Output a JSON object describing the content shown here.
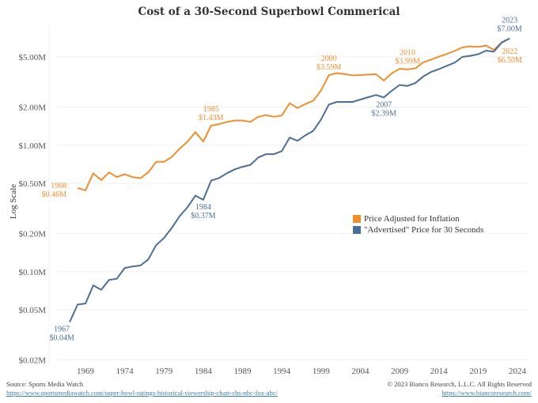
{
  "chart_data": {
    "type": "line",
    "title": "Cost of a 30-Second Superbowl Commerical",
    "xlabel": "",
    "ylabel": "Log Scale",
    "yscale": "log",
    "ylim": [
      0.02,
      7.5
    ],
    "xlim": [
      1965,
      2025
    ],
    "y_ticks": [
      {
        "value": 5.0,
        "label": "$5.00M"
      },
      {
        "value": 2.0,
        "label": "$2.00M"
      },
      {
        "value": 1.0,
        "label": "$1.00M"
      },
      {
        "value": 0.5,
        "label": "$0.50M"
      },
      {
        "value": 0.2,
        "label": "$0.20M"
      },
      {
        "value": 0.1,
        "label": "$0.10M"
      },
      {
        "value": 0.05,
        "label": "$0.05M"
      },
      {
        "value": 0.02,
        "label": "$0.02M"
      }
    ],
    "x_ticks": [
      "1969",
      "1974",
      "1979",
      "1984",
      "1989",
      "1994",
      "1999",
      "2004",
      "2009",
      "2014",
      "2019",
      "2024"
    ],
    "grid": true,
    "legend_position": "center-right",
    "series": [
      {
        "name": "Price Adjusted for Inflation",
        "color": "#ee8f2e",
        "x": [
          1968,
          1969,
          1970,
          1971,
          1972,
          1973,
          1974,
          1975,
          1976,
          1977,
          1978,
          1979,
          1980,
          1981,
          1982,
          1983,
          1984,
          1985,
          1986,
          1987,
          1988,
          1989,
          1990,
          1991,
          1992,
          1993,
          1994,
          1995,
          1996,
          1997,
          1998,
          1999,
          2000,
          2001,
          2002,
          2003,
          2004,
          2005,
          2006,
          2007,
          2008,
          2009,
          2010,
          2011,
          2012,
          2013,
          2014,
          2015,
          2016,
          2017,
          2018,
          2019,
          2020,
          2021,
          2022,
          2023
        ],
        "values": [
          0.46,
          0.44,
          0.6,
          0.53,
          0.61,
          0.56,
          0.59,
          0.56,
          0.55,
          0.61,
          0.74,
          0.74,
          0.81,
          0.94,
          1.07,
          1.27,
          1.07,
          1.43,
          1.47,
          1.53,
          1.57,
          1.57,
          1.53,
          1.68,
          1.73,
          1.68,
          1.72,
          2.15,
          1.97,
          2.12,
          2.25,
          2.72,
          3.59,
          3.72,
          3.65,
          3.57,
          3.59,
          3.62,
          3.65,
          3.25,
          3.7,
          4.03,
          3.99,
          4.05,
          4.53,
          4.76,
          5.02,
          5.27,
          5.57,
          5.95,
          6.05,
          5.99,
          6.15,
          5.69,
          6.5,
          7.0
        ]
      },
      {
        "name": "\"Advertised\" Price for 30 Seconds",
        "color": "#4a6f96",
        "x": [
          1967,
          1968,
          1969,
          1970,
          1971,
          1972,
          1973,
          1974,
          1975,
          1976,
          1977,
          1978,
          1979,
          1980,
          1981,
          1982,
          1983,
          1984,
          1985,
          1986,
          1987,
          1988,
          1989,
          1990,
          1991,
          1992,
          1993,
          1994,
          1995,
          1996,
          1997,
          1998,
          1999,
          2000,
          2001,
          2002,
          2003,
          2004,
          2005,
          2006,
          2007,
          2008,
          2009,
          2010,
          2011,
          2012,
          2013,
          2014,
          2015,
          2016,
          2017,
          2018,
          2019,
          2020,
          2021,
          2022,
          2023
        ],
        "values": [
          0.04,
          0.055,
          0.056,
          0.078,
          0.072,
          0.086,
          0.088,
          0.107,
          0.11,
          0.112,
          0.125,
          0.162,
          0.185,
          0.222,
          0.275,
          0.324,
          0.4,
          0.37,
          0.525,
          0.55,
          0.6,
          0.645,
          0.675,
          0.7,
          0.8,
          0.85,
          0.85,
          0.9,
          1.15,
          1.085,
          1.2,
          1.3,
          1.6,
          2.1,
          2.2,
          2.2,
          2.2,
          2.3,
          2.4,
          2.5,
          2.39,
          2.7,
          3.0,
          2.95,
          3.1,
          3.5,
          3.8,
          4.0,
          4.25,
          4.5,
          5.0,
          5.1,
          5.25,
          5.6,
          5.5,
          6.5,
          7.0
        ]
      }
    ],
    "annotations": [
      {
        "series": 0,
        "year": "1968",
        "value_label": "$0.46M"
      },
      {
        "series": 0,
        "year": "1985",
        "value_label": "$1.43M"
      },
      {
        "series": 0,
        "year": "2000",
        "value_label": "$3.59M"
      },
      {
        "series": 0,
        "year": "2010",
        "value_label": "$3.99M"
      },
      {
        "series": 0,
        "year": "2022",
        "value_label": "$6.50M"
      },
      {
        "series": 1,
        "year": "1967",
        "value_label": "$0.04M"
      },
      {
        "series": 1,
        "year": "1984",
        "value_label": "$0.37M"
      },
      {
        "series": 1,
        "year": "2007",
        "value_label": "$2.39M"
      },
      {
        "series": 1,
        "year": "2023",
        "value_label": "$7.00M"
      }
    ]
  },
  "legend": {
    "items": [
      {
        "label": "Price Adjusted for Inflation",
        "color": "#ee8f2e"
      },
      {
        "label": "\"Advertised\" Price for 30 Seconds",
        "color": "#4a6f96"
      }
    ]
  },
  "footer": {
    "source_label": "Source: Sports Media Watch",
    "source_url_text": "https://www.sportsmediawatch.com/super-bowl-ratings-historical-viewership-chart-cbs-nbc-fox-abc/",
    "copyright": "© 2023 Bianco Research, L.L.C. All Rights Reserved",
    "site_url_text": "https://www.biancoresearch.com/"
  }
}
